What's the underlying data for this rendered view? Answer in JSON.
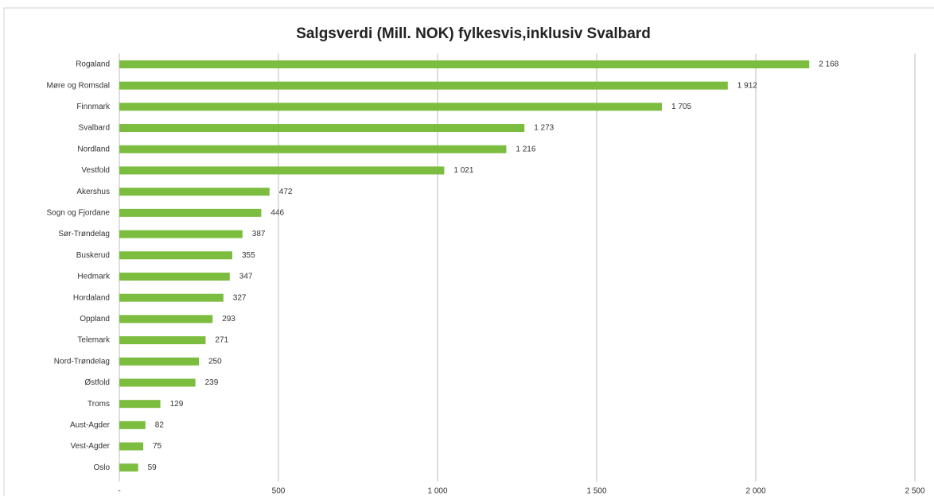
{
  "chart_data": {
    "type": "bar",
    "orientation": "horizontal",
    "title": "Salgsverdi (Mill. NOK) fylkesvis,inklusiv Svalbard",
    "categories": [
      "Rogaland",
      "Møre og Romsdal",
      "Finnmark",
      "Svalbard",
      "Nordland",
      "Vestfold",
      "Akershus",
      "Sogn og Fjordane",
      "Sør-Trøndelag",
      "Buskerud",
      "Hedmark",
      "Hordaland",
      "Oppland",
      "Telemark",
      "Nord-Trøndelag",
      "Østfold",
      "Troms",
      "Aust-Agder",
      "Vest-Agder",
      "Oslo"
    ],
    "values": [
      2168,
      1912,
      1705,
      1273,
      1216,
      1021,
      472,
      446,
      387,
      355,
      347,
      327,
      293,
      271,
      250,
      239,
      129,
      82,
      75,
      59
    ],
    "value_labels": [
      "2 168",
      "1 912",
      "1 705",
      "1 273",
      "1 216",
      "1 021",
      "472",
      "446",
      "387",
      "355",
      "347",
      "327",
      "293",
      "271",
      "250",
      "239",
      "129",
      "82",
      "75",
      "59"
    ],
    "color": "#7cbd3f",
    "xlim": [
      0,
      2500
    ],
    "xticks": [
      {
        "value": 0,
        "label": "-"
      },
      500,
      {
        "value": 1000,
        "label": "1 000"
      },
      {
        "value": 1500,
        "label": "1 500"
      },
      {
        "value": 2000,
        "label": "2 000"
      },
      {
        "value": 2500,
        "label": "2 500"
      }
    ],
    "grid": true
  }
}
